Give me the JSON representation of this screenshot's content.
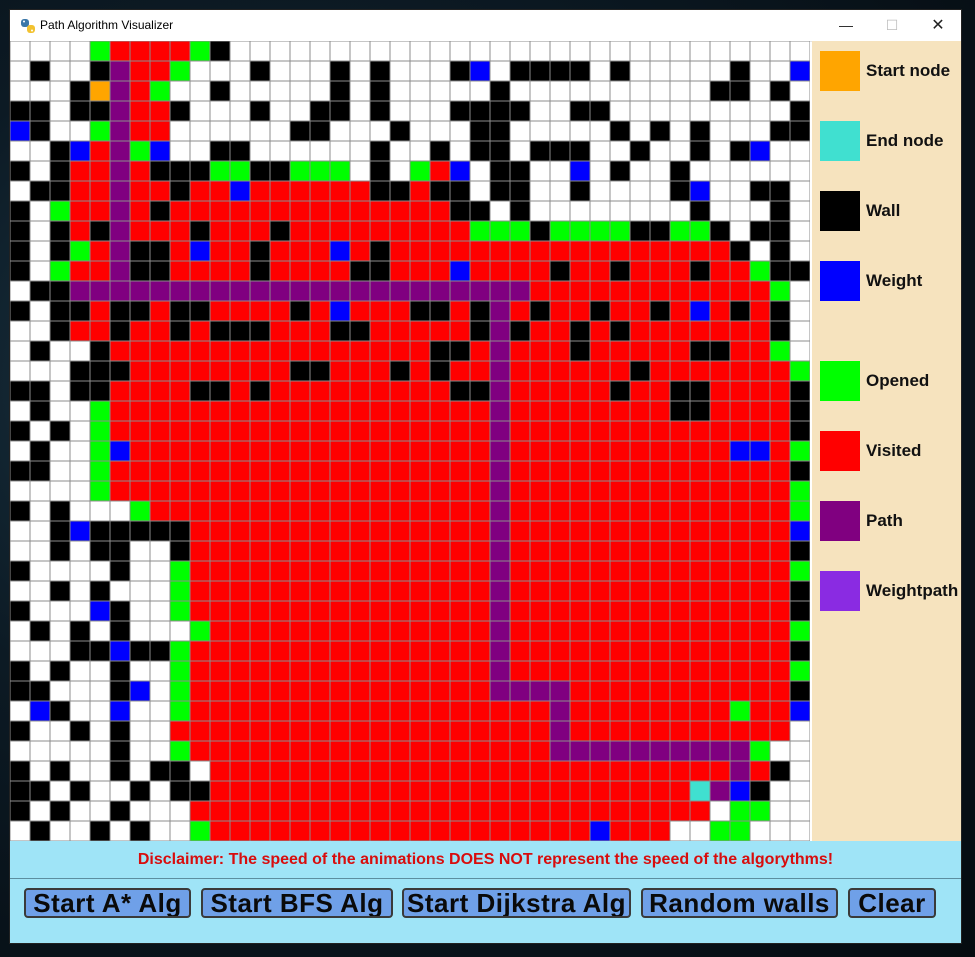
{
  "window": {
    "title": "Path Algorithm Visualizer",
    "controls": {
      "minimize": "—",
      "maximize": "☐",
      "close": "✕"
    }
  },
  "colors": {
    "start": "#ffa500",
    "end": "#40e0d0",
    "wall": "#000000",
    "weight": "#0000ff",
    "opened": "#00ff00",
    "visited": "#ff0000",
    "path": "#800080",
    "weightpath": "#8a2be2",
    "empty": "#ffffff",
    "gridline": "#8c8c8c",
    "legend_bg": "#f6e3be",
    "bottom_bg": "#9fe4f7",
    "button_bg": "#6fa0e8",
    "disclaimer": "#d80d0d"
  },
  "legend": [
    {
      "label": "Start node",
      "color": "#ffa500"
    },
    {
      "label": "End node",
      "color": "#40e0d0"
    },
    {
      "label": "Wall",
      "color": "#000000"
    },
    {
      "label": "Weight",
      "color": "#0000ff"
    },
    {
      "label": "Opened",
      "color": "#00ff00"
    },
    {
      "label": "Visited",
      "color": "#ff0000"
    },
    {
      "label": "Path",
      "color": "#800080"
    },
    {
      "label": "Weightpath",
      "color": "#8a2be2"
    }
  ],
  "disclaimer": "Disclaimer: The speed of the animations DOES NOT represent the speed of the algorythms!",
  "buttons": {
    "astar": "Start A* Alg",
    "bfs": "Start BFS Alg",
    "dijkstra": "Start Dijkstra Alg",
    "random": "Random walls",
    "clear": "Clear"
  },
  "grid": {
    "rows": 40,
    "cols": 40,
    "cells": [
      "....ORRRROW.............................",
      ".W..WPRRO...W...W.W...WB.WWWW.W.....W..B",
      "...WSPRO..W.....W.W.....W..........WW.W.",
      "WW.WWPRRW...W..WW.W...WWWW..WW.........W",
      "BW..OPRR......WW...W...WW.....W.W.W...WW",
      "..WBRPOB..WW......W..W.WW.WWW..W..W.WB..",
      "W.WRRPRWWWOOWWOOO.W.ORB.WW..B.W..W......",
      ".WWRRPRRWRRBRRRRRRWWRWW.WW..W....WB..WW.",
      "W.ORRPRWRRRRRRRRRRRRRRWW.W........W...W.",
      "W.WRWPRRRWRRRWRRRRRRRRROOOWOOOOWWOOW.WW.",
      "W.WORPWWRBRRWRRRBRWRRRRRRRRRRRRRRRRRW.W.",
      "W.ORRPWWRRRRWRRRRWWRRRBRRRRWRRWRRRWRROWW",
      ".WWPPPPPPPPPPPPPPPPPPPPPPPRRRRRRRRRRRRO..",
      "W.WWRWWRWWRRRRWRBRRRWWRWPRWRRWRRWRBRWRW..",
      "..WRRWRRWRWWWRRRWWRRRRRWPWRRWRWRRRRRRRW.",
      ".W..WRRRRRRRRRRRRRRRRWWRPRRRWRRRRRWWRRO.",
      "...WWWRRRRRRRRWWRRRWRWRRPRRRRRRWRRRRRRRO",
      "WW.WWRRRRWWRWRRRRRRRRRWWPRRRRRWRRWWRRRRW",
      ".W..ORRRRRRRRRRRRRRRRRRRPRRRRRRRRWWRRRRW",
      "W.W.ORRRRRRRRRRRRRRRRRRRPRRRRRRRRRRRRRRW",
      ".W..OBRRRRRRRRRRRRRRRRRRPRRRRRRRRRRRBBRO",
      "WW..ORRRRRRRRRRRRRRRRRRRPRRRRRRRRRRRRRRW",
      "....ORRRRRRRRRRRRRRRRRRRPRRRRRRRRRRRRRRO",
      "W.W...ORRRRRRRRRRRRRRRRRPRRRRRRRRRRRRRRO",
      "..WBWWWWWRRRRRRRRRRRRRRRPRRRRRRRRRRRRRRB",
      "..W.WW..WRRRRRRRRRRRRRRRPRRRRRRRRRRRRRRW",
      "W....W..ORRRRRRRRRRRRRRRPRRRRRRRRRRRRRRO",
      "..W.W...ORRRRRRRRRRRRRRRPRRRRRRRRRRRRRRW",
      "W...BW..ORRRRRRRRRRRRRRRPRRRRRRRRRRRRRRW",
      ".W.W.W...ORRRRRRRRRRRRRRPRRRRRRRRRRRRRRO",
      "...WWBWWORRRRRRRRRRRRRRRPRRRRRRRRRRRRRRW",
      "W.W..W..ORRRRRRRRRRRRRRRPRRRRRRRRRRRRRRO",
      "WW...WB.ORRRRRRRRRRRRRRRPPPPRRRRRRRRRRRW",
      ".BW..B..ORRRRRRRRRRRRRRRRRRPRRRRRRRRORRB",
      "W..W.W..RRRRRRRRRRRRRRRRRRRPRRRRRRRRRRR.",
      ".....W..ORRRRRRRRRRRRRRRRRRPPPPPPPPPPO..",
      "W.W..W.WW.RRRRRRRRRRRRRRRRRRRRRRRRRRPRW.",
      "WW.W..W.WWRRRRRRRRRRRRRRRRRRRRRRRREPBW.",
      "W.W..W...RRRRRRRRRRRRRRRRRRRRRRRRRR.OO..",
      ".W..W.W..ORRRRRRRRRRRRRRRRRRRBRRR..OO..."
    ]
  }
}
